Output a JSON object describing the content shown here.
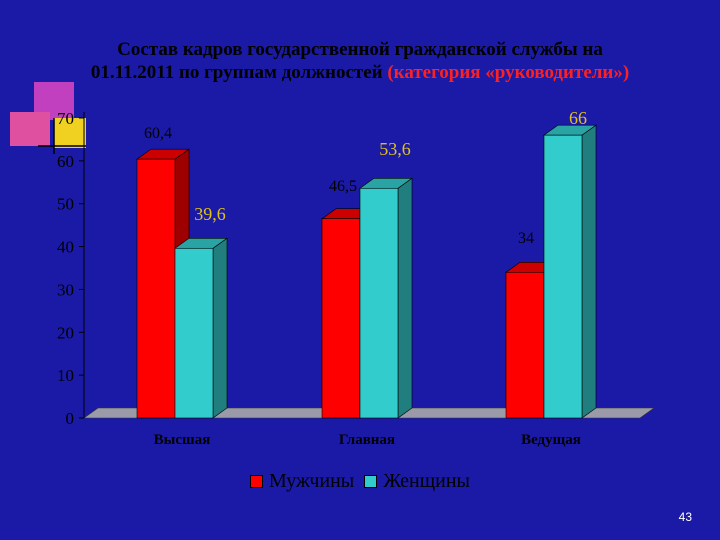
{
  "slide": {
    "title_line1": "Состав кадров государственной гражданской службы на",
    "title_line2_main": "01.11.2011 по группам должностей ",
    "title_line2_highlight": "(категория «руководители»)",
    "slide_number": "43"
  },
  "colors": {
    "background": "#1a1aa6",
    "men": "#ff0000",
    "women": "#33cccc",
    "floor": "#9a9aa8"
  },
  "chart_data": {
    "type": "bar",
    "categories": [
      "Высшая",
      "Главная",
      "Ведущая"
    ],
    "series": [
      {
        "name": "Мужчины",
        "values": [
          60.4,
          46.5,
          34
        ],
        "labels": [
          "60,4",
          "46,5",
          "34"
        ]
      },
      {
        "name": "Женщины",
        "values": [
          39.6,
          53.6,
          66
        ],
        "labels": [
          "39,6",
          "53,6",
          "66"
        ]
      }
    ],
    "yticks": [
      "0",
      "10",
      "20",
      "30",
      "40",
      "50",
      "60",
      "70"
    ],
    "ylim": [
      0,
      70
    ],
    "grid": false,
    "legend_position": "bottom"
  }
}
